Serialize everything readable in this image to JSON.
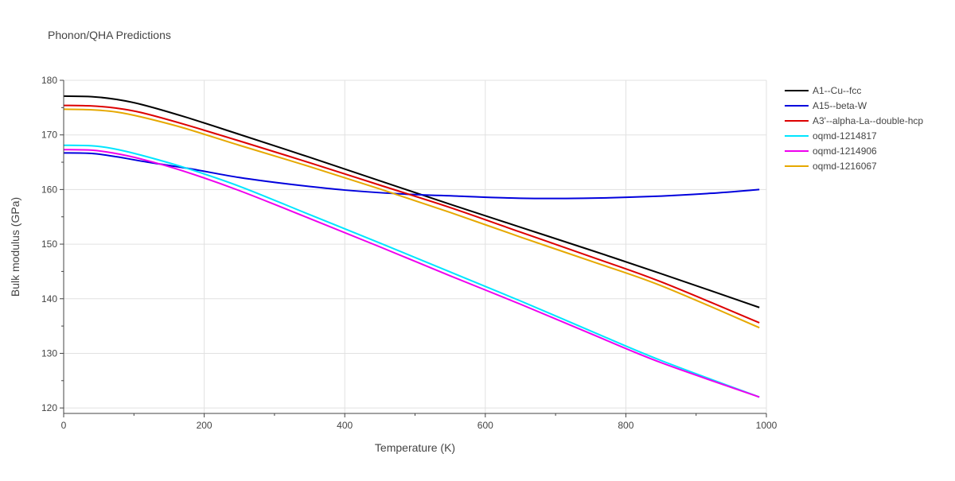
{
  "chart_data": {
    "type": "line",
    "title": "Phonon/QHA Predictions",
    "xlabel": "Temperature (K)",
    "ylabel": "Bulk modulus (GPa)",
    "xlim": [
      0,
      1000
    ],
    "ylim": [
      119,
      180
    ],
    "x_ticks": [
      0,
      200,
      400,
      600,
      800,
      1000
    ],
    "y_ticks": [
      120,
      130,
      140,
      150,
      160,
      170,
      180
    ],
    "grid": true,
    "legend_position": "top-right",
    "series": [
      {
        "name": "A1--Cu--fcc",
        "color": "#000000",
        "x": [
          0,
          40,
          75,
          110,
          170,
          250,
          350,
          450,
          550,
          650,
          750,
          850,
          990
        ],
        "y": [
          177.1,
          177.0,
          176.5,
          175.6,
          173.4,
          170.1,
          165.9,
          161.6,
          157.3,
          153.1,
          148.9,
          144.6,
          138.4
        ]
      },
      {
        "name": "A15--beta-W",
        "color": "#0000dd",
        "x": [
          0,
          40,
          75,
          120,
          180,
          250,
          320,
          400,
          480,
          560,
          650,
          740,
          830,
          920,
          990
        ],
        "y": [
          166.7,
          166.6,
          166.0,
          165.0,
          163.8,
          162.2,
          161.0,
          159.9,
          159.2,
          158.8,
          158.4,
          158.4,
          158.7,
          159.3,
          160.0
        ]
      },
      {
        "name": "A3'--alpha-La--double-hcp",
        "color": "#dd0000",
        "x": [
          0,
          40,
          75,
          110,
          170,
          250,
          350,
          450,
          550,
          650,
          750,
          850,
          990
        ],
        "y": [
          175.4,
          175.3,
          174.9,
          174.1,
          172.0,
          168.9,
          164.9,
          160.8,
          156.7,
          152.2,
          147.7,
          143.1,
          135.6
        ]
      },
      {
        "name": "oqmd-1214817",
        "color": "#00e5ff",
        "x": [
          0,
          40,
          70,
          110,
          170,
          250,
          350,
          450,
          550,
          650,
          750,
          850,
          990
        ],
        "y": [
          168.1,
          168.0,
          167.5,
          166.3,
          164.1,
          160.6,
          155.4,
          150.2,
          144.9,
          139.6,
          134.1,
          128.7,
          122.0
        ]
      },
      {
        "name": "oqmd-1214906",
        "color": "#ee00ee",
        "x": [
          0,
          40,
          70,
          110,
          170,
          250,
          350,
          450,
          550,
          650,
          750,
          850,
          990
        ],
        "y": [
          167.3,
          167.2,
          166.7,
          165.6,
          163.4,
          159.8,
          154.7,
          149.5,
          144.2,
          139.0,
          133.6,
          128.3,
          122.0
        ]
      },
      {
        "name": "oqmd-1216067",
        "color": "#e6a800",
        "x": [
          0,
          40,
          75,
          110,
          170,
          250,
          350,
          450,
          550,
          650,
          750,
          850,
          990
        ],
        "y": [
          174.7,
          174.6,
          174.2,
          173.3,
          171.3,
          168.1,
          164.2,
          160.1,
          155.8,
          151.3,
          146.9,
          142.4,
          134.7
        ]
      }
    ]
  }
}
